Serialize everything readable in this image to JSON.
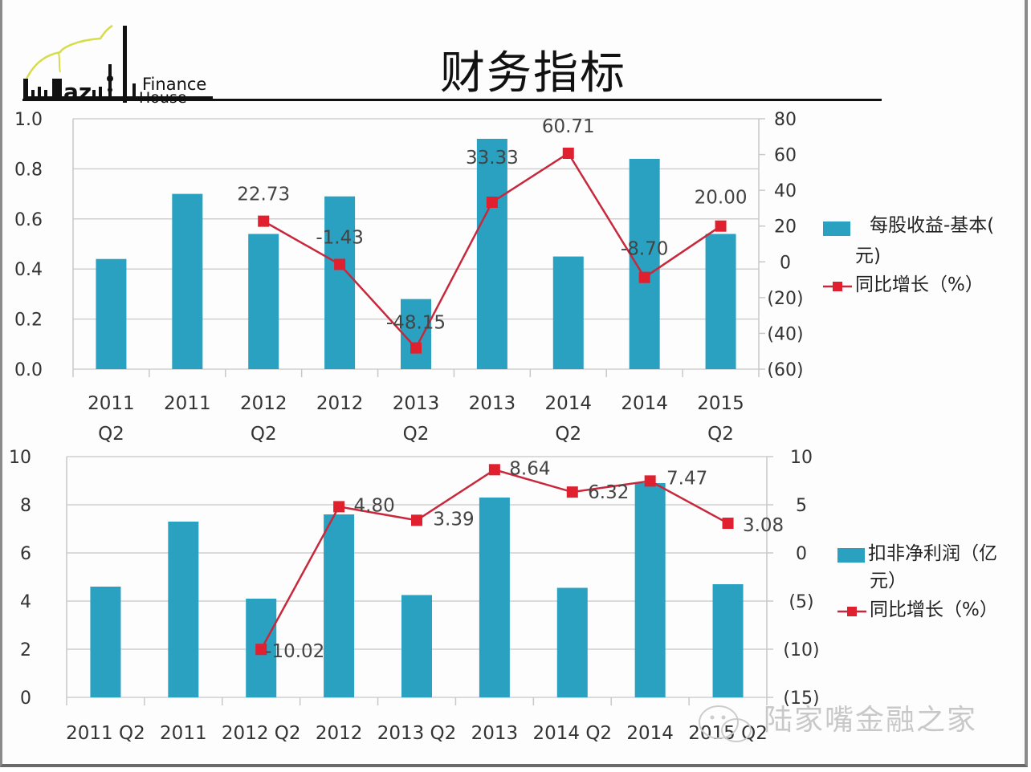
{
  "logo": {
    "text_line1": "Finance",
    "text_line2": "House",
    "brand": "Lujiazui"
  },
  "title": "财务指标",
  "watermark": "陆家嘴金融之家",
  "colors": {
    "bar": "#2aa1c0",
    "line": "#c8283c",
    "marker": "#e0202e",
    "grid": "#d0d0d0",
    "axis_text": "#333333"
  },
  "chart_data": [
    {
      "type": "bar+line",
      "title": "",
      "categories": [
        "2011 Q2",
        "2011",
        "2012 Q2",
        "2012",
        "2013 Q2",
        "2013",
        "2014 Q2",
        "2014",
        "2015 Q2"
      ],
      "category_lines": [
        [
          "2011",
          "Q2"
        ],
        [
          "2011",
          ""
        ],
        [
          "2012",
          "Q2"
        ],
        [
          "2012",
          ""
        ],
        [
          "2013",
          "Q2"
        ],
        [
          "2013",
          ""
        ],
        [
          "2014",
          "Q2"
        ],
        [
          "2014",
          ""
        ],
        [
          "2015",
          "Q2"
        ]
      ],
      "series": [
        {
          "name": "每股收益-基本(元)",
          "legend_line1": "每股收益-基本(",
          "legend_line2": "元)",
          "kind": "bar",
          "axis": "left",
          "values": [
            0.44,
            0.7,
            0.54,
            0.69,
            0.28,
            0.92,
            0.45,
            0.84,
            0.54
          ]
        },
        {
          "name": "同比增长（%）",
          "kind": "line",
          "axis": "right",
          "values": [
            null,
            null,
            22.73,
            -1.43,
            -48.15,
            33.33,
            60.71,
            -8.7,
            20.0
          ],
          "labels": [
            "",
            "",
            "22.73",
            "-1.43",
            "-48.15",
            "33.33",
            "60.71",
            "-8.70",
            "20.00"
          ]
        }
      ],
      "left_axis": {
        "min": 0,
        "max": 1.0,
        "ticks": [
          "0.0",
          "0.2",
          "0.4",
          "0.6",
          "0.8",
          "1.0"
        ],
        "tick_values": [
          0,
          0.2,
          0.4,
          0.6,
          0.8,
          1.0
        ]
      },
      "right_axis": {
        "min": -60,
        "max": 80,
        "ticks": [
          "(60)",
          "(40)",
          "(20)",
          "0",
          "20",
          "40",
          "60",
          "80"
        ],
        "tick_values": [
          -60,
          -40,
          -20,
          0,
          20,
          40,
          60,
          80
        ]
      },
      "grid": true,
      "legend": "right"
    },
    {
      "type": "bar+line",
      "title": "",
      "categories": [
        "2011 Q2",
        "2011",
        "2012 Q2",
        "2012",
        "2013 Q2",
        "2013",
        "2014 Q2",
        "2014",
        "2015 Q2"
      ],
      "series": [
        {
          "name": "扣非净利润（亿元）",
          "legend_line1": "扣非净利润（亿",
          "legend_line2": "元）",
          "kind": "bar",
          "axis": "left",
          "values": [
            4.6,
            7.3,
            4.1,
            7.6,
            4.25,
            8.3,
            4.55,
            8.9,
            4.7
          ]
        },
        {
          "name": "同比增长（%）",
          "kind": "line",
          "axis": "right",
          "values": [
            null,
            null,
            -10.02,
            4.8,
            3.39,
            8.64,
            6.32,
            7.47,
            3.08
          ],
          "labels": [
            "",
            "",
            "-10.02",
            "4.80",
            "3.39",
            "8.64",
            "6.32",
            "7.47",
            "3.08"
          ]
        }
      ],
      "left_axis": {
        "min": 0,
        "max": 10,
        "ticks": [
          "0",
          "2",
          "4",
          "6",
          "8",
          "10"
        ],
        "tick_values": [
          0,
          2,
          4,
          6,
          8,
          10
        ]
      },
      "right_axis": {
        "min": -15,
        "max": 10,
        "ticks": [
          "(15)",
          "(10)",
          "(5)",
          "0",
          "5",
          "10"
        ],
        "tick_values": [
          -15,
          -10,
          -5,
          0,
          5,
          10
        ]
      },
      "grid": true,
      "legend": "right"
    }
  ]
}
